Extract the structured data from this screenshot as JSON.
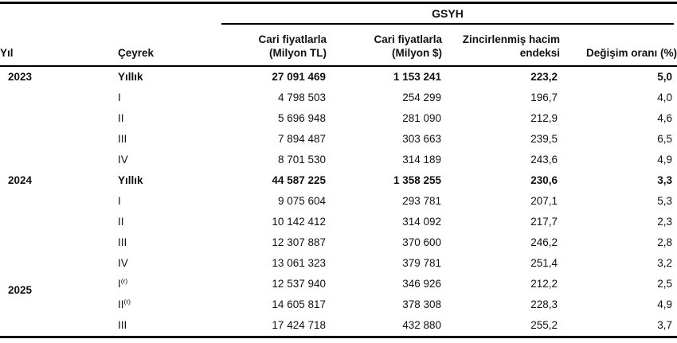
{
  "table": {
    "group_header": "GSYH",
    "columns": {
      "year": "Yıl",
      "quarter": "Çeyrek",
      "tl": "Cari fiyatlarla\n(Milyon TL)",
      "usd": "Cari fiyatlarla\n(Milyon $)",
      "index": "Zincirlenmiş hacim\nendeksi",
      "change": "Değişim oranı (%)"
    },
    "rows": [
      {
        "year": "2023",
        "quarter": "Yıllık",
        "sup": "",
        "tl": "27 091 469",
        "usd": "1 153 241",
        "index": "223,2",
        "change": "5,0"
      },
      {
        "year": "",
        "quarter": "I",
        "sup": "",
        "tl": "4 798 503",
        "usd": "254 299",
        "index": "196,7",
        "change": "4,0"
      },
      {
        "year": "",
        "quarter": "II",
        "sup": "",
        "tl": "5 696 948",
        "usd": "281 090",
        "index": "212,9",
        "change": "4,6"
      },
      {
        "year": "",
        "quarter": "III",
        "sup": "",
        "tl": "7 894 487",
        "usd": "303 663",
        "index": "239,5",
        "change": "6,5"
      },
      {
        "year": "",
        "quarter": "IV",
        "sup": "",
        "tl": "8 701 530",
        "usd": "314 189",
        "index": "243,6",
        "change": "4,9"
      },
      {
        "year": "2024",
        "quarter": "Yıllık",
        "sup": "",
        "tl": "44 587 225",
        "usd": "1 358 255",
        "index": "230,6",
        "change": "3,3"
      },
      {
        "year": "",
        "quarter": "I",
        "sup": "",
        "tl": "9 075 604",
        "usd": "293 781",
        "index": "207,1",
        "change": "5,3"
      },
      {
        "year": "",
        "quarter": "II",
        "sup": "",
        "tl": "10 142 412",
        "usd": "314 092",
        "index": "217,7",
        "change": "2,3"
      },
      {
        "year": "",
        "quarter": "III",
        "sup": "",
        "tl": "12 307 887",
        "usd": "370 600",
        "index": "246,2",
        "change": "2,8"
      },
      {
        "year": "",
        "quarter": "IV",
        "sup": "",
        "tl": "13 061 323",
        "usd": "379 781",
        "index": "251,4",
        "change": "3,2"
      },
      {
        "year": "2025",
        "quarter": "I",
        "sup": "(r)",
        "tl": "12 537 940",
        "usd": "346 926",
        "index": "212,2",
        "change": "2,5"
      },
      {
        "year": "",
        "quarter": "II",
        "sup": "(r)",
        "tl": "14 605 817",
        "usd": "378 308",
        "index": "228,3",
        "change": "4,9"
      },
      {
        "year": "",
        "quarter": "III",
        "sup": "",
        "tl": "17 424 718",
        "usd": "432 880",
        "index": "255,2",
        "change": "3,7"
      }
    ]
  }
}
